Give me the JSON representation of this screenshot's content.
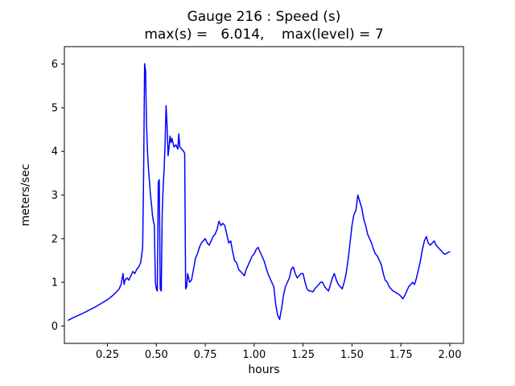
{
  "chart_data": {
    "type": "line",
    "title": "Gauge 216 : Speed (s)",
    "subtitle": "max(s) =   6.014,    max(level) = 7",
    "xlabel": "hours",
    "ylabel": "meters/sec",
    "max_s": 6.014,
    "max_level": 7,
    "line_color": "#0000ff",
    "axis_color": "#000000",
    "background_color": "#ffffff",
    "xlim": [
      0.03,
      2.07
    ],
    "ylim": [
      -0.4,
      6.4
    ],
    "xticks": [
      0.25,
      0.5,
      0.75,
      1.0,
      1.25,
      1.5,
      1.75,
      2.0
    ],
    "xtick_labels": [
      "0.25",
      "0.50",
      "0.75",
      "1.00",
      "1.25",
      "1.50",
      "1.75",
      "2.00"
    ],
    "yticks": [
      0,
      1,
      2,
      3,
      4,
      5,
      6
    ],
    "ytick_labels": [
      "0",
      "1",
      "2",
      "3",
      "4",
      "5",
      "6"
    ],
    "grid": false,
    "legend": "none",
    "points": [
      [
        0.05,
        0.13
      ],
      [
        0.08,
        0.2
      ],
      [
        0.1,
        0.24
      ],
      [
        0.13,
        0.3
      ],
      [
        0.16,
        0.37
      ],
      [
        0.19,
        0.44
      ],
      [
        0.22,
        0.52
      ],
      [
        0.25,
        0.6
      ],
      [
        0.27,
        0.67
      ],
      [
        0.29,
        0.75
      ],
      [
        0.31,
        0.85
      ],
      [
        0.32,
        0.95
      ],
      [
        0.33,
        1.2
      ],
      [
        0.335,
        0.95
      ],
      [
        0.34,
        1.05
      ],
      [
        0.35,
        1.1
      ],
      [
        0.36,
        1.05
      ],
      [
        0.37,
        1.15
      ],
      [
        0.38,
        1.25
      ],
      [
        0.39,
        1.2
      ],
      [
        0.4,
        1.3
      ],
      [
        0.41,
        1.35
      ],
      [
        0.42,
        1.45
      ],
      [
        0.43,
        1.8
      ],
      [
        0.435,
        3.5
      ],
      [
        0.44,
        6.01
      ],
      [
        0.445,
        5.85
      ],
      [
        0.45,
        4.6
      ],
      [
        0.455,
        4.0
      ],
      [
        0.46,
        3.6
      ],
      [
        0.465,
        3.3
      ],
      [
        0.47,
        3.0
      ],
      [
        0.475,
        2.8
      ],
      [
        0.48,
        2.55
      ],
      [
        0.485,
        2.4
      ],
      [
        0.49,
        2.3
      ],
      [
        0.495,
        1.0
      ],
      [
        0.5,
        0.85
      ],
      [
        0.505,
        0.8
      ],
      [
        0.51,
        3.3
      ],
      [
        0.515,
        3.35
      ],
      [
        0.52,
        0.85
      ],
      [
        0.525,
        0.8
      ],
      [
        0.53,
        2.6
      ],
      [
        0.535,
        3.2
      ],
      [
        0.54,
        3.6
      ],
      [
        0.545,
        4.2
      ],
      [
        0.55,
        5.05
      ],
      [
        0.555,
        4.6
      ],
      [
        0.56,
        3.9
      ],
      [
        0.565,
        4.1
      ],
      [
        0.57,
        4.35
      ],
      [
        0.575,
        4.2
      ],
      [
        0.58,
        4.3
      ],
      [
        0.59,
        4.1
      ],
      [
        0.6,
        4.15
      ],
      [
        0.61,
        4.05
      ],
      [
        0.615,
        4.4
      ],
      [
        0.62,
        4.1
      ],
      [
        0.63,
        4.05
      ],
      [
        0.64,
        4.0
      ],
      [
        0.645,
        3.95
      ],
      [
        0.65,
        0.85
      ],
      [
        0.655,
        0.9
      ],
      [
        0.66,
        1.2
      ],
      [
        0.665,
        1.1
      ],
      [
        0.67,
        1.0
      ],
      [
        0.68,
        1.05
      ],
      [
        0.69,
        1.3
      ],
      [
        0.7,
        1.55
      ],
      [
        0.71,
        1.65
      ],
      [
        0.72,
        1.8
      ],
      [
        0.73,
        1.9
      ],
      [
        0.74,
        1.95
      ],
      [
        0.75,
        2.0
      ],
      [
        0.76,
        1.9
      ],
      [
        0.77,
        1.85
      ],
      [
        0.78,
        1.95
      ],
      [
        0.79,
        2.05
      ],
      [
        0.8,
        2.1
      ],
      [
        0.81,
        2.2
      ],
      [
        0.82,
        2.4
      ],
      [
        0.83,
        2.3
      ],
      [
        0.84,
        2.35
      ],
      [
        0.85,
        2.3
      ],
      [
        0.86,
        2.1
      ],
      [
        0.87,
        1.9
      ],
      [
        0.88,
        1.95
      ],
      [
        0.89,
        1.7
      ],
      [
        0.9,
        1.5
      ],
      [
        0.91,
        1.45
      ],
      [
        0.92,
        1.3
      ],
      [
        0.93,
        1.25
      ],
      [
        0.94,
        1.2
      ],
      [
        0.95,
        1.15
      ],
      [
        0.96,
        1.3
      ],
      [
        0.97,
        1.4
      ],
      [
        0.98,
        1.5
      ],
      [
        0.99,
        1.6
      ],
      [
        1.0,
        1.65
      ],
      [
        1.01,
        1.75
      ],
      [
        1.02,
        1.8
      ],
      [
        1.03,
        1.7
      ],
      [
        1.04,
        1.6
      ],
      [
        1.05,
        1.5
      ],
      [
        1.06,
        1.35
      ],
      [
        1.07,
        1.2
      ],
      [
        1.08,
        1.1
      ],
      [
        1.09,
        1.0
      ],
      [
        1.1,
        0.9
      ],
      [
        1.11,
        0.5
      ],
      [
        1.12,
        0.25
      ],
      [
        1.13,
        0.15
      ],
      [
        1.14,
        0.4
      ],
      [
        1.15,
        0.7
      ],
      [
        1.16,
        0.9
      ],
      [
        1.17,
        1.0
      ],
      [
        1.18,
        1.1
      ],
      [
        1.19,
        1.3
      ],
      [
        1.2,
        1.35
      ],
      [
        1.21,
        1.2
      ],
      [
        1.22,
        1.1
      ],
      [
        1.23,
        1.15
      ],
      [
        1.24,
        1.2
      ],
      [
        1.25,
        1.2
      ],
      [
        1.26,
        1.0
      ],
      [
        1.27,
        0.85
      ],
      [
        1.28,
        0.8
      ],
      [
        1.29,
        0.8
      ],
      [
        1.3,
        0.78
      ],
      [
        1.31,
        0.85
      ],
      [
        1.32,
        0.9
      ],
      [
        1.33,
        0.95
      ],
      [
        1.34,
        1.0
      ],
      [
        1.35,
        1.0
      ],
      [
        1.36,
        0.9
      ],
      [
        1.37,
        0.85
      ],
      [
        1.38,
        0.8
      ],
      [
        1.39,
        0.95
      ],
      [
        1.4,
        1.1
      ],
      [
        1.41,
        1.2
      ],
      [
        1.42,
        1.05
      ],
      [
        1.43,
        0.95
      ],
      [
        1.44,
        0.9
      ],
      [
        1.45,
        0.85
      ],
      [
        1.46,
        1.0
      ],
      [
        1.47,
        1.2
      ],
      [
        1.48,
        1.5
      ],
      [
        1.49,
        1.9
      ],
      [
        1.5,
        2.3
      ],
      [
        1.51,
        2.55
      ],
      [
        1.52,
        2.65
      ],
      [
        1.53,
        3.0
      ],
      [
        1.54,
        2.85
      ],
      [
        1.55,
        2.7
      ],
      [
        1.56,
        2.45
      ],
      [
        1.57,
        2.3
      ],
      [
        1.58,
        2.1
      ],
      [
        1.59,
        2.0
      ],
      [
        1.6,
        1.9
      ],
      [
        1.61,
        1.75
      ],
      [
        1.62,
        1.65
      ],
      [
        1.63,
        1.6
      ],
      [
        1.64,
        1.5
      ],
      [
        1.65,
        1.4
      ],
      [
        1.66,
        1.2
      ],
      [
        1.67,
        1.05
      ],
      [
        1.68,
        1.0
      ],
      [
        1.69,
        0.9
      ],
      [
        1.7,
        0.85
      ],
      [
        1.71,
        0.8
      ],
      [
        1.72,
        0.78
      ],
      [
        1.73,
        0.75
      ],
      [
        1.74,
        0.72
      ],
      [
        1.75,
        0.68
      ],
      [
        1.76,
        0.62
      ],
      [
        1.77,
        0.7
      ],
      [
        1.78,
        0.8
      ],
      [
        1.79,
        0.9
      ],
      [
        1.8,
        0.95
      ],
      [
        1.81,
        1.0
      ],
      [
        1.82,
        0.95
      ],
      [
        1.83,
        1.1
      ],
      [
        1.84,
        1.3
      ],
      [
        1.85,
        1.5
      ],
      [
        1.86,
        1.75
      ],
      [
        1.87,
        1.95
      ],
      [
        1.88,
        2.05
      ],
      [
        1.89,
        1.9
      ],
      [
        1.9,
        1.85
      ],
      [
        1.91,
        1.9
      ],
      [
        1.92,
        1.95
      ],
      [
        1.93,
        1.85
      ],
      [
        1.94,
        1.8
      ],
      [
        1.95,
        1.75
      ],
      [
        1.96,
        1.7
      ],
      [
        1.97,
        1.65
      ],
      [
        1.98,
        1.65
      ],
      [
        1.99,
        1.68
      ],
      [
        2.0,
        1.7
      ]
    ]
  }
}
